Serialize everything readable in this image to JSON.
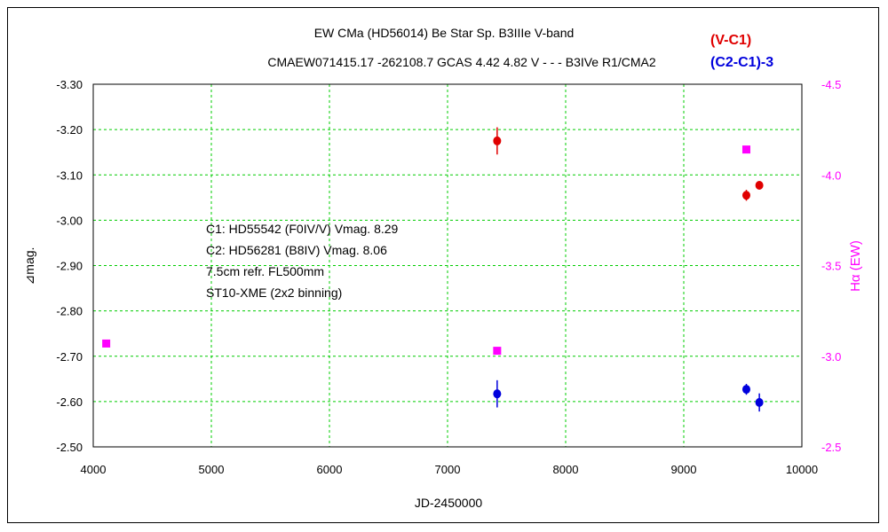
{
  "chart_data": {
    "type": "scatter",
    "title_line1": "EW CMa (HD56014)    Be Star    Sp. B3IIIe    V-band",
    "title_line2": "CMAEW071415.17 -262108.7 GCAS 4.42 4.82 V - - - B3IVe R1/CMA2",
    "xlabel": "JD-2450000",
    "ylabel": "⊿mag.",
    "y2label": "Hα (EW)",
    "xlim": [
      4000,
      10000
    ],
    "ylim": [
      -2.5,
      -3.3
    ],
    "y2lim": [
      -2.5,
      -4.5
    ],
    "x_ticks": [
      "4000",
      "5000",
      "6000",
      "7000",
      "8000",
      "9000",
      "10000"
    ],
    "y_ticks": [
      "-3.30",
      "-3.20",
      "-3.10",
      "-3.00",
      "-2.90",
      "-2.80",
      "-2.70",
      "-2.60",
      "-2.50"
    ],
    "y2_ticks": [
      "-4.5",
      "-4.0",
      "-3.5",
      "-3.0",
      "-2.5"
    ],
    "grid": true,
    "legend_position": "top-right",
    "notes": [
      "C1: HD55542 (F0IV/V) Vmag. 8.29",
      "C2: HD56281 (B8IV) Vmag. 8.06",
      "7.5cm refr. FL500mm",
      "ST10-XME (2x2 binning)"
    ],
    "series": [
      {
        "name": "(V-C1)",
        "color": "#e00000",
        "axis": "left",
        "x": [
          7420,
          9530,
          9640
        ],
        "y": [
          -3.175,
          -3.055,
          -3.077
        ],
        "err": [
          0.03,
          0.012,
          0.008
        ]
      },
      {
        "name": "(C2-C1)-3",
        "color": "#0000dd",
        "axis": "left",
        "x": [
          7420,
          9530,
          9640
        ],
        "y": [
          -2.617,
          -2.627,
          -2.598
        ],
        "err": [
          0.03,
          0.012,
          0.02
        ]
      },
      {
        "name": "Hα",
        "color": "#ff00ff",
        "axis": "right",
        "x": [
          4110,
          7420,
          9530
        ],
        "y": [
          -3.07,
          -3.03,
          -4.14
        ]
      }
    ]
  }
}
